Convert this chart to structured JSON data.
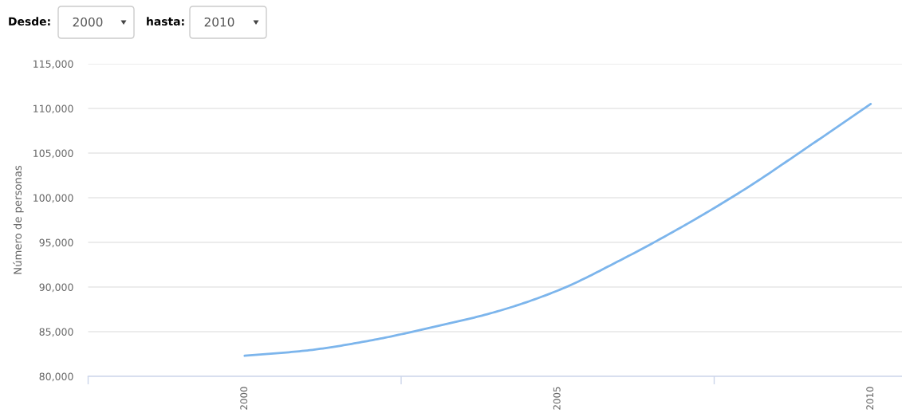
{
  "chart_data": {
    "type": "line",
    "ylabel": "Número de personas",
    "annotations": [
      "Desde:",
      "2000",
      "hasta:",
      "2010"
    ],
    "x": [
      2000,
      2001,
      2002,
      2003,
      2004,
      2005,
      2006,
      2007,
      2008,
      2009,
      2010
    ],
    "series": [
      {
        "color": "#7cb5ec",
        "values": [
          82300,
          82900,
          84000,
          85500,
          87200,
          89600,
          93000,
          96800,
          101000,
          105700,
          110500
        ]
      }
    ],
    "xlim": [
      1997.5,
      2010.5
    ],
    "xticks": [
      {
        "value": 1997.5,
        "label": null
      },
      {
        "value": 2000,
        "label": "2000"
      },
      {
        "value": 2002.5,
        "label": null
      },
      {
        "value": 2005,
        "label": "2005"
      },
      {
        "value": 2007.5,
        "label": null
      },
      {
        "value": 2010,
        "label": "2010"
      }
    ],
    "ylim": [
      80000,
      115000
    ],
    "yticks": [
      {
        "value": 80000,
        "label": "80,000"
      },
      {
        "value": 85000,
        "label": "85,000"
      },
      {
        "value": 90000,
        "label": "90,000"
      },
      {
        "value": 95000,
        "label": "95,000"
      },
      {
        "value": 100000,
        "label": "100,000"
      },
      {
        "value": 105000,
        "label": "105,000"
      },
      {
        "value": 110000,
        "label": "110,000"
      },
      {
        "value": 115000,
        "label": "115,000"
      }
    ],
    "grid": "y",
    "line_style": "solid"
  }
}
